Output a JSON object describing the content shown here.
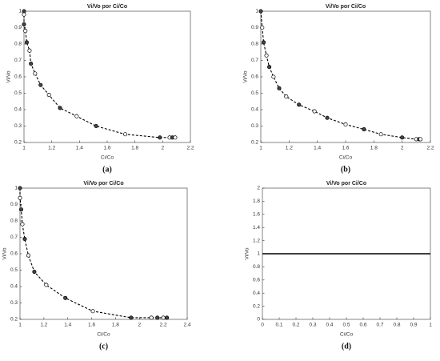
{
  "chart_data": [
    {
      "type": "line",
      "title": "Vi/Vo por Ci/Co",
      "xlabel": "Ci/Co",
      "ylabel": "Vi/Vo",
      "caption": "(a)",
      "xlim": [
        1,
        2.2
      ],
      "xticks": [
        1,
        1.2,
        1.4,
        1.6,
        1.8,
        2,
        2.2
      ],
      "ylim": [
        0.2,
        1
      ],
      "yticks": [
        0.2,
        0.3,
        0.4,
        0.5,
        0.6,
        0.7,
        0.8,
        0.9,
        1
      ],
      "linestyle": "dashed",
      "marker": "circle",
      "x": [
        1,
        1,
        1,
        1.01,
        1.02,
        1.04,
        1.05,
        1.08,
        1.12,
        1.18,
        1.26,
        1.38,
        1.52,
        1.73,
        1.98,
        2.05,
        2.07,
        2.09
      ],
      "series": [
        {
          "color": "#000000",
          "values": [
            1,
            0.98,
            0.92,
            0.88,
            0.81,
            0.76,
            0.68,
            0.62,
            0.55,
            0.49,
            0.41,
            0.36,
            0.3,
            0.25,
            0.23,
            0.23,
            0.23,
            0.23
          ]
        }
      ]
    },
    {
      "type": "line",
      "title": "Vi/Vo por Ci/Co",
      "xlabel": "Ci/Co",
      "ylabel": "Vi/Vo",
      "caption": "(b)",
      "xlim": [
        1,
        2.2
      ],
      "xticks": [
        1,
        1.2,
        1.4,
        1.6,
        1.8,
        2,
        2.2
      ],
      "ylim": [
        0.2,
        1
      ],
      "yticks": [
        0.2,
        0.3,
        0.4,
        0.5,
        0.6,
        0.7,
        0.8,
        0.9,
        1
      ],
      "linestyle": "dashed",
      "marker": "circle",
      "x": [
        1,
        1.01,
        1.02,
        1.04,
        1.06,
        1.09,
        1.13,
        1.18,
        1.27,
        1.38,
        1.47,
        1.6,
        1.73,
        1.85,
        2,
        2.1,
        2.12,
        2.13
      ],
      "series": [
        {
          "color": "#000000",
          "values": [
            1,
            0.9,
            0.81,
            0.73,
            0.66,
            0.6,
            0.53,
            0.48,
            0.43,
            0.39,
            0.35,
            0.31,
            0.28,
            0.25,
            0.23,
            0.22,
            0.22,
            0.22
          ]
        }
      ]
    },
    {
      "type": "line",
      "title": "Vi/Vo por Ci/Co",
      "xlabel": "Ci/Co",
      "ylabel": "Vi/Vo",
      "caption": "(c)",
      "xlim": [
        1,
        2.4
      ],
      "xticks": [
        1,
        1.2,
        1.4,
        1.6,
        1.8,
        2,
        2.2,
        2.4
      ],
      "ylim": [
        0.2,
        1
      ],
      "yticks": [
        0.2,
        0.3,
        0.4,
        0.5,
        0.6,
        0.7,
        0.8,
        0.9,
        1
      ],
      "linestyle": "dashed",
      "marker": "circle",
      "x": [
        1,
        1,
        1.01,
        1.02,
        1.04,
        1.07,
        1.12,
        1.22,
        1.38,
        1.61,
        1.93,
        2.1,
        2.15,
        2.2,
        2.23
      ],
      "series": [
        {
          "color": "#000000",
          "values": [
            1,
            0.94,
            0.87,
            0.78,
            0.69,
            0.59,
            0.49,
            0.41,
            0.33,
            0.25,
            0.21,
            0.21,
            0.21,
            0.21,
            0.21
          ]
        }
      ]
    },
    {
      "type": "line",
      "title": "Vi/Vo por Ci/Co",
      "xlabel": "Ci/Co",
      "ylabel": "Vi/Vo",
      "caption": "(d)",
      "xlim": [
        0,
        1
      ],
      "xticks": [
        0,
        0.1,
        0.2,
        0.3,
        0.4,
        0.5,
        0.6,
        0.7,
        0.8,
        0.9,
        1
      ],
      "ylim": [
        0,
        2
      ],
      "yticks": [
        0,
        0.2,
        0.4,
        0.6,
        0.8,
        1,
        1.2,
        1.4,
        1.6,
        1.8,
        2
      ],
      "linestyle": "solid",
      "marker": "none",
      "x": [
        0,
        1
      ],
      "series": [
        {
          "color": "#000000",
          "values": [
            1,
            1
          ]
        }
      ]
    }
  ]
}
